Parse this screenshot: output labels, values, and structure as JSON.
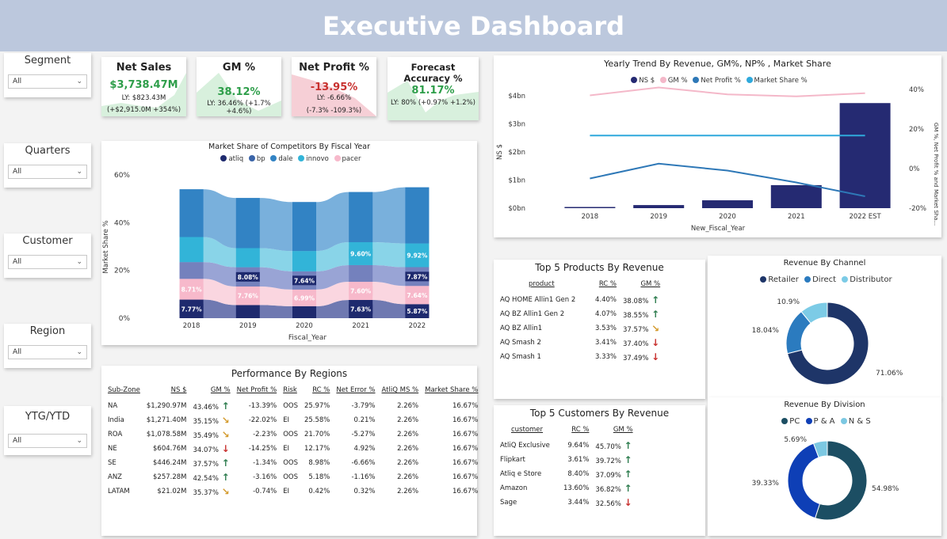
{
  "header": {
    "title": "Executive Dashboard"
  },
  "slicers": [
    {
      "label": "Segment",
      "value": "All"
    },
    {
      "label": "Quarters",
      "value": "All"
    },
    {
      "label": "Customer",
      "value": "All"
    },
    {
      "label": "Region",
      "value": "All"
    },
    {
      "label": "YTG/YTD",
      "value": "All"
    }
  ],
  "kpis": {
    "net_sales": {
      "title": "Net Sales",
      "value": "$3,738.47M",
      "ly": "LY: $823.43M",
      "change": "(+$2,915.0M +354%)",
      "color": "#2e9e4a"
    },
    "gm": {
      "title": "GM %",
      "value": "38.12%",
      "ly": "LY: 36.46% (+1.7% +4.6%)",
      "color": "#2e9e4a"
    },
    "net_profit": {
      "title": "Net Profit %",
      "value": "-13.95%",
      "ly": "LY: -6.66%",
      "change": "(-7.3% -109.3%)",
      "color": "#c8312f"
    },
    "forecast": {
      "title": "Forecast Accuracy %",
      "value": "81.17%",
      "ly": "LY: 80% (+0.97% +1.2%)",
      "color": "#2e9e4a"
    }
  },
  "market_share": {
    "title": "Market Share of Competitors By Fiscal Year",
    "xlabel": "Fiscal_Year",
    "ylabel": "Market Share %",
    "legend": [
      {
        "name": "atliq",
        "color": "#1e2a6e"
      },
      {
        "name": "bp",
        "color": "#3b64a8"
      },
      {
        "name": "dale",
        "color": "#3283c4"
      },
      {
        "name": "innovo",
        "color": "#32b4d8"
      },
      {
        "name": "pacer",
        "color": "#f7b9cb"
      }
    ],
    "yticks": [
      "60%",
      "40%",
      "20%",
      "0%"
    ],
    "years": [
      "2018",
      "2019",
      "2020",
      "2021",
      "2022"
    ],
    "labels": {
      "atliq": [
        "7.77%",
        "",
        "",
        "7.63%",
        "5.87%"
      ],
      "pacer": [
        "8.71%",
        "7.76%",
        "6.99%",
        "7.60%",
        "7.64%"
      ],
      "bp": [
        "",
        "8.08%",
        "7.64%",
        "",
        "7.87%"
      ],
      "innovo": [
        "",
        "",
        "",
        "9.60%",
        "9.92%"
      ]
    }
  },
  "chart_data": [
    {
      "type": "area",
      "title": "Market Share of Competitors By Fiscal Year",
      "xlabel": "Fiscal_Year",
      "ylabel": "Market Share %",
      "categories": [
        "2018",
        "2019",
        "2020",
        "2021",
        "2022"
      ],
      "ylim": [
        0,
        60
      ],
      "series": [
        {
          "name": "atliq",
          "values": [
            7.77,
            5.5,
            5.0,
            7.63,
            5.87
          ]
        },
        {
          "name": "pacer",
          "values": [
            8.71,
            7.76,
            6.99,
            7.6,
            7.64
          ]
        },
        {
          "name": "bp",
          "values": [
            7.0,
            8.08,
            7.64,
            7.0,
            7.87
          ]
        },
        {
          "name": "innovo",
          "values": [
            10.5,
            8.0,
            8.5,
            9.6,
            9.92
          ]
        },
        {
          "name": "dale",
          "values": [
            20.0,
            21.0,
            20.5,
            21.0,
            23.5
          ]
        }
      ]
    },
    {
      "type": "bar",
      "title": "Yearly Trend By Revenue, GM%, NP% , Market Share",
      "xlabel": "New_Fiscal_Year",
      "ylabel": "NS $",
      "y2label": "GM %, Net Profit % and Market Sha...",
      "categories": [
        "2018",
        "2019",
        "2020",
        "2021",
        "2022 EST"
      ],
      "ylim": [
        0,
        4
      ],
      "y2lim": [
        -20,
        40
      ],
      "yticks": [
        "$4bn",
        "$3bn",
        "$2bn",
        "$1bn",
        "$0bn"
      ],
      "y2ticks": [
        "40%",
        "20%",
        "0%",
        "-20%"
      ],
      "series": [
        {
          "name": "NS $",
          "kind": "bar",
          "color": "#252a72",
          "values": [
            0.02,
            0.11,
            0.28,
            0.82,
            3.74
          ]
        },
        {
          "name": "GM %",
          "kind": "line",
          "color": "#f4b8c9",
          "values": [
            37,
            41,
            37.5,
            36.5,
            38.1
          ]
        },
        {
          "name": "Net Profit %",
          "kind": "line",
          "color": "#2e78b7",
          "values": [
            -5,
            2.5,
            -1,
            -7,
            -14
          ]
        },
        {
          "name": "Market Share %",
          "kind": "line",
          "color": "#2fa9dc",
          "values": [
            16.7,
            16.7,
            16.7,
            16.7,
            16.7
          ]
        }
      ]
    },
    {
      "type": "pie",
      "title": "Revenue By Channel",
      "categories": [
        "Retailer",
        "Direct",
        "Distributor"
      ],
      "values": [
        71.06,
        18.04,
        10.9
      ],
      "labels": [
        "71.06%",
        "18.04%",
        "10.9%"
      ],
      "colors": [
        "#1e3568",
        "#2b7bbf",
        "#7ccbe6"
      ]
    },
    {
      "type": "pie",
      "title": "Revenue By Division",
      "categories": [
        "PC",
        "P & A",
        "N & S"
      ],
      "values": [
        54.98,
        39.33,
        5.69
      ],
      "labels": [
        "54.98%",
        "39.33%",
        "5.69%"
      ],
      "colors": [
        "#1c4e63",
        "#0e3fb6",
        "#7cc8e2"
      ]
    }
  ],
  "yearly_trend": {
    "title": "Yearly Trend By Revenue, GM%, NP% , Market Share",
    "xlabel": "New_Fiscal_Year",
    "ylabel": "NS $",
    "y2label": "GM %, Net Profit % and Market Sha...",
    "legend": [
      {
        "name": "NS $",
        "color": "#252a72"
      },
      {
        "name": "GM %",
        "color": "#f4b8c9"
      },
      {
        "name": "Net Profit %",
        "color": "#2e78b7"
      },
      {
        "name": "Market Share %",
        "color": "#2fa9dc"
      }
    ]
  },
  "regions": {
    "title": "Performance By Regions",
    "headers": [
      "Sub-Zone",
      "NS $",
      "GM %",
      "Net Profit %",
      "Risk",
      "RC %",
      "Net Error %",
      "AtliQ MS %",
      "Market Share %"
    ],
    "rows": [
      {
        "zone": "NA",
        "ns": "$1,290.97M",
        "gm": "43.46%",
        "dir": "up",
        "np": "-13.39%",
        "risk": "OOS",
        "rc": "25.97%",
        "ne": "-3.79%",
        "ams": "2.26%",
        "ms": "16.67%"
      },
      {
        "zone": "India",
        "ns": "$1,271.40M",
        "gm": "35.15%",
        "dir": "side",
        "np": "-22.02%",
        "risk": "EI",
        "rc": "25.58%",
        "ne": "0.21%",
        "ams": "2.26%",
        "ms": "16.67%"
      },
      {
        "zone": "ROA",
        "ns": "$1,078.58M",
        "gm": "35.49%",
        "dir": "side",
        "np": "-2.23%",
        "risk": "OOS",
        "rc": "21.70%",
        "ne": "-5.27%",
        "ams": "2.26%",
        "ms": "16.67%"
      },
      {
        "zone": "NE",
        "ns": "$604.76M",
        "gm": "34.07%",
        "dir": "down",
        "np": "-14.25%",
        "risk": "EI",
        "rc": "12.17%",
        "ne": "4.92%",
        "ams": "2.26%",
        "ms": "16.67%"
      },
      {
        "zone": "SE",
        "ns": "$446.24M",
        "gm": "37.57%",
        "dir": "up",
        "np": "-1.34%",
        "risk": "OOS",
        "rc": "8.98%",
        "ne": "-6.66%",
        "ams": "2.26%",
        "ms": "16.67%"
      },
      {
        "zone": "ANZ",
        "ns": "$257.28M",
        "gm": "42.54%",
        "dir": "up",
        "np": "-3.16%",
        "risk": "OOS",
        "rc": "5.18%",
        "ne": "-1.16%",
        "ams": "2.26%",
        "ms": "16.67%"
      },
      {
        "zone": "LATAM",
        "ns": "$21.02M",
        "gm": "35.37%",
        "dir": "side",
        "np": "-0.74%",
        "risk": "EI",
        "rc": "0.42%",
        "ne": "0.32%",
        "ams": "2.26%",
        "ms": "16.67%"
      }
    ]
  },
  "products": {
    "title": "Top 5 Products By Revenue",
    "headers": [
      "product",
      "RC %",
      "GM %"
    ],
    "rows": [
      {
        "name": "AQ HOME Allin1 Gen 2",
        "rc": "4.40%",
        "gm": "38.08%",
        "dir": "up"
      },
      {
        "name": "AQ BZ Allin1 Gen 2",
        "rc": "4.07%",
        "gm": "38.55%",
        "dir": "up"
      },
      {
        "name": "AQ BZ Allin1",
        "rc": "3.53%",
        "gm": "37.57%",
        "dir": "side"
      },
      {
        "name": "AQ Smash 2",
        "rc": "3.41%",
        "gm": "37.40%",
        "dir": "down"
      },
      {
        "name": "AQ Smash 1",
        "rc": "3.33%",
        "gm": "37.49%",
        "dir": "down"
      }
    ]
  },
  "customers": {
    "title": "Top 5 Customers By Revenue",
    "headers": [
      "customer",
      "RC %",
      "GM %"
    ],
    "rows": [
      {
        "name": "AtliQ Exclusive",
        "rc": "9.64%",
        "gm": "45.70%",
        "dir": "up"
      },
      {
        "name": "Flipkart",
        "rc": "3.61%",
        "gm": "39.72%",
        "dir": "up"
      },
      {
        "name": "Atliq e Store",
        "rc": "8.40%",
        "gm": "37.09%",
        "dir": "up"
      },
      {
        "name": "Amazon",
        "rc": "13.60%",
        "gm": "36.82%",
        "dir": "up"
      },
      {
        "name": "Sage",
        "rc": "3.44%",
        "gm": "32.56%",
        "dir": "down"
      }
    ]
  },
  "channel": {
    "title": "Revenue By Channel",
    "legend": [
      {
        "name": "Retailer",
        "color": "#1e3568"
      },
      {
        "name": "Direct",
        "color": "#2b7bbf"
      },
      {
        "name": "Distributor",
        "color": "#7ccbe6"
      }
    ]
  },
  "division": {
    "title": "Revenue By Division",
    "legend": [
      {
        "name": "PC",
        "color": "#1c4e63"
      },
      {
        "name": "P & A",
        "color": "#0e3fb6"
      },
      {
        "name": "N & S",
        "color": "#7cc8e2"
      }
    ]
  }
}
